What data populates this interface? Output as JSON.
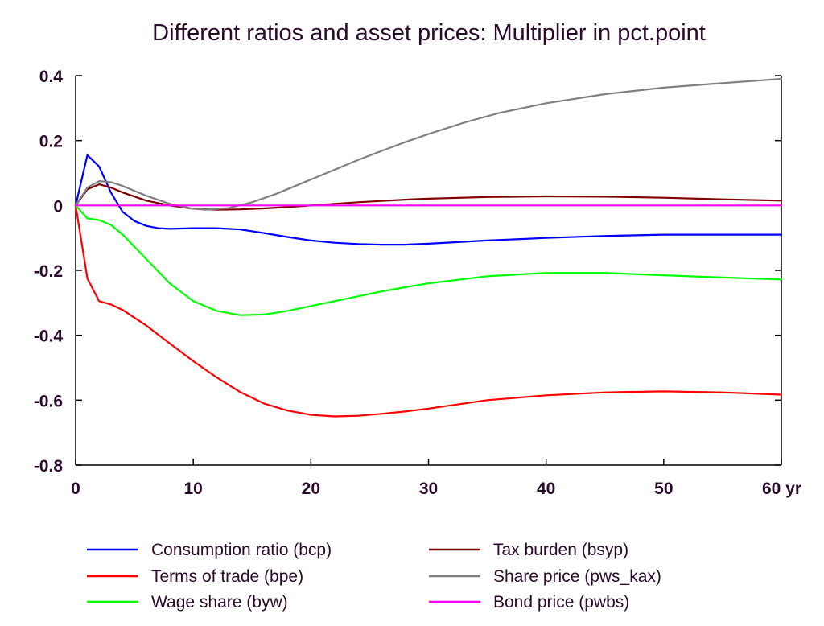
{
  "chart_data": {
    "type": "line",
    "title": "Different ratios and asset prices: Multiplier in pct.point",
    "xlabel": "",
    "ylabel": "",
    "x_unit": "yr",
    "xlim": [
      0,
      60
    ],
    "ylim": [
      -0.8,
      0.4
    ],
    "xticks": [
      0,
      10,
      20,
      30,
      40,
      50,
      60
    ],
    "yticks": [
      0.4,
      0.2,
      0,
      -0.2,
      -0.4,
      -0.6,
      -0.8
    ],
    "xtick_labels": [
      "0",
      "10",
      "20",
      "30",
      "40",
      "50",
      "60 yr"
    ],
    "ytick_labels": [
      "0.4",
      "0.2",
      "0",
      "-0.2",
      "-0.4",
      "-0.6",
      "-0.8"
    ],
    "grid": false,
    "legend_position": "bottom",
    "series": [
      {
        "name": "Consumption ratio (bcp)",
        "color": "#0000ff",
        "points": [
          [
            0,
            0
          ],
          [
            1,
            0.155
          ],
          [
            2,
            0.12
          ],
          [
            3,
            0.04
          ],
          [
            4,
            -0.02
          ],
          [
            5,
            -0.048
          ],
          [
            6,
            -0.063
          ],
          [
            7,
            -0.07
          ],
          [
            8,
            -0.072
          ],
          [
            10,
            -0.07
          ],
          [
            12,
            -0.07
          ],
          [
            14,
            -0.074
          ],
          [
            16,
            -0.085
          ],
          [
            18,
            -0.097
          ],
          [
            20,
            -0.108
          ],
          [
            22,
            -0.115
          ],
          [
            24,
            -0.119
          ],
          [
            26,
            -0.121
          ],
          [
            28,
            -0.121
          ],
          [
            30,
            -0.118
          ],
          [
            35,
            -0.108
          ],
          [
            40,
            -0.1
          ],
          [
            45,
            -0.094
          ],
          [
            50,
            -0.09
          ],
          [
            55,
            -0.09
          ],
          [
            60,
            -0.09
          ]
        ]
      },
      {
        "name": "Terms of trade (bpe)",
        "color": "#ff0000",
        "points": [
          [
            0,
            0
          ],
          [
            1,
            -0.225
          ],
          [
            2,
            -0.295
          ],
          [
            3,
            -0.305
          ],
          [
            4,
            -0.322
          ],
          [
            6,
            -0.37
          ],
          [
            8,
            -0.425
          ],
          [
            10,
            -0.48
          ],
          [
            12,
            -0.53
          ],
          [
            14,
            -0.575
          ],
          [
            16,
            -0.61
          ],
          [
            18,
            -0.632
          ],
          [
            20,
            -0.645
          ],
          [
            22,
            -0.65
          ],
          [
            24,
            -0.648
          ],
          [
            26,
            -0.642
          ],
          [
            28,
            -0.635
          ],
          [
            30,
            -0.626
          ],
          [
            35,
            -0.6
          ],
          [
            40,
            -0.585
          ],
          [
            45,
            -0.576
          ],
          [
            50,
            -0.573
          ],
          [
            55,
            -0.576
          ],
          [
            60,
            -0.583
          ]
        ]
      },
      {
        "name": "Wage share (byw)",
        "color": "#00ff00",
        "points": [
          [
            0,
            0
          ],
          [
            1,
            -0.04
          ],
          [
            2,
            -0.045
          ],
          [
            3,
            -0.06
          ],
          [
            4,
            -0.09
          ],
          [
            6,
            -0.165
          ],
          [
            8,
            -0.24
          ],
          [
            10,
            -0.295
          ],
          [
            12,
            -0.325
          ],
          [
            14,
            -0.338
          ],
          [
            16,
            -0.336
          ],
          [
            18,
            -0.325
          ],
          [
            20,
            -0.31
          ],
          [
            22,
            -0.295
          ],
          [
            24,
            -0.28
          ],
          [
            26,
            -0.265
          ],
          [
            28,
            -0.252
          ],
          [
            30,
            -0.24
          ],
          [
            35,
            -0.218
          ],
          [
            40,
            -0.208
          ],
          [
            45,
            -0.208
          ],
          [
            50,
            -0.215
          ],
          [
            55,
            -0.222
          ],
          [
            60,
            -0.228
          ]
        ]
      },
      {
        "name": "Tax burden (bsyp)",
        "color": "#800000",
        "points": [
          [
            0,
            0
          ],
          [
            1,
            0.05
          ],
          [
            2,
            0.065
          ],
          [
            3,
            0.055
          ],
          [
            4,
            0.04
          ],
          [
            6,
            0.015
          ],
          [
            8,
            0
          ],
          [
            10,
            -0.01
          ],
          [
            12,
            -0.013
          ],
          [
            14,
            -0.012
          ],
          [
            16,
            -0.009
          ],
          [
            18,
            -0.005
          ],
          [
            20,
            0
          ],
          [
            22,
            0.005
          ],
          [
            24,
            0.01
          ],
          [
            26,
            0.014
          ],
          [
            28,
            0.018
          ],
          [
            30,
            0.021
          ],
          [
            35,
            0.026
          ],
          [
            40,
            0.028
          ],
          [
            45,
            0.027
          ],
          [
            50,
            0.024
          ],
          [
            55,
            0.019
          ],
          [
            60,
            0.015
          ]
        ]
      },
      {
        "name": "Share price (pws_kax)",
        "color": "#808080",
        "points": [
          [
            0,
            0
          ],
          [
            1,
            0.055
          ],
          [
            2,
            0.075
          ],
          [
            3,
            0.072
          ],
          [
            4,
            0.06
          ],
          [
            6,
            0.03
          ],
          [
            8,
            0.005
          ],
          [
            10,
            -0.01
          ],
          [
            11,
            -0.013
          ],
          [
            13,
            -0.008
          ],
          [
            15,
            0.01
          ],
          [
            17,
            0.035
          ],
          [
            20,
            0.08
          ],
          [
            22,
            0.11
          ],
          [
            24,
            0.14
          ],
          [
            26,
            0.168
          ],
          [
            28,
            0.195
          ],
          [
            30,
            0.22
          ],
          [
            33,
            0.255
          ],
          [
            36,
            0.285
          ],
          [
            40,
            0.315
          ],
          [
            45,
            0.343
          ],
          [
            50,
            0.363
          ],
          [
            55,
            0.377
          ],
          [
            60,
            0.39
          ]
        ]
      },
      {
        "name": "Bond price (pwbs)",
        "color": "#ff00ff",
        "points": [
          [
            0,
            0
          ],
          [
            60,
            0
          ]
        ]
      }
    ]
  }
}
